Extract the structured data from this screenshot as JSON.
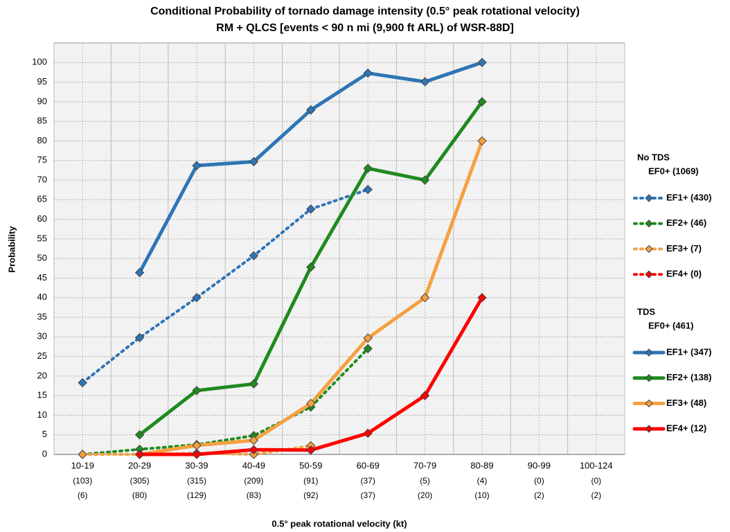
{
  "chart_data": {
    "type": "line",
    "title": "Conditional Probability of tornado damage intensity (0.5° peak rotational velocity)",
    "subtitle": "RM + QLCS [events < 90 n mi (9,900 ft ARL) of WSR-88D]",
    "x_label": "0.5° peak rotational velocity (kt)",
    "y_label": "Probability",
    "categories": [
      "10-19",
      "20-29",
      "30-39",
      "40-49",
      "50-59",
      "60-69",
      "70-79",
      "80-89",
      "90-99",
      "100-124"
    ],
    "counts_no_tds": [
      "(103)",
      "(305)",
      "(315)",
      "(209)",
      "(91)",
      "(37)",
      "(5)",
      "(4)",
      "(0)",
      "(0)"
    ],
    "counts_tds": [
      "(6)",
      "(80)",
      "(129)",
      "(83)",
      "(92)",
      "(37)",
      "(20)",
      "(10)",
      "(2)",
      "(2)"
    ],
    "ylim": [
      0,
      105
    ],
    "yticks": [
      0,
      5,
      10,
      15,
      20,
      25,
      30,
      35,
      40,
      45,
      50,
      55,
      60,
      65,
      70,
      75,
      80,
      85,
      90,
      95,
      100
    ],
    "grid": true,
    "legend_groups": [
      {
        "title": "No TDS",
        "base": "EF0+ (1069)"
      },
      {
        "title": "TDS",
        "base": "EF0+ (461)"
      }
    ],
    "series": [
      {
        "name": "EF1+ (430)",
        "color": "#2e75b6",
        "style": "dotted",
        "group": 0,
        "values": [
          18.3,
          29.8,
          40,
          50.7,
          62.6,
          67.6,
          null,
          null,
          null,
          null
        ]
      },
      {
        "name": "EF2+ (46)",
        "color": "#1f8a1f",
        "style": "dotted",
        "group": 0,
        "values": [
          0,
          1.3,
          2.5,
          4.8,
          12.1,
          27,
          null,
          null,
          null,
          null
        ]
      },
      {
        "name": "EF3+ (7)",
        "color": "#f5a040",
        "style": "dotted",
        "group": 0,
        "values": [
          0,
          0,
          0.3,
          0,
          2.2,
          null,
          null,
          null,
          null,
          null
        ]
      },
      {
        "name": "EF4+ (0)",
        "color": "#ff0000",
        "style": "dotted",
        "group": 0,
        "values": [
          null,
          null,
          null,
          null,
          null,
          null,
          null,
          null,
          null,
          null
        ]
      },
      {
        "name": "EF1+ (347)",
        "color": "#2e75b6",
        "style": "solid",
        "group": 1,
        "values": [
          null,
          46.4,
          73.7,
          74.7,
          87.9,
          97.3,
          95.1,
          100,
          null,
          null
        ]
      },
      {
        "name": "EF2+ (138)",
        "color": "#1f8a1f",
        "style": "solid",
        "group": 1,
        "values": [
          null,
          5,
          16.3,
          18,
          47.8,
          73,
          70,
          90,
          null,
          null
        ]
      },
      {
        "name": "EF3+ (48)",
        "color": "#f5a040",
        "style": "solid",
        "group": 1,
        "values": [
          null,
          0,
          2.3,
          3.6,
          13,
          29.7,
          40,
          80,
          null,
          null
        ]
      },
      {
        "name": "EF4+ (12)",
        "color": "#ff0000",
        "style": "solid",
        "group": 1,
        "values": [
          null,
          0,
          0,
          1.2,
          1.1,
          5.4,
          15,
          40,
          null,
          null
        ]
      }
    ]
  }
}
